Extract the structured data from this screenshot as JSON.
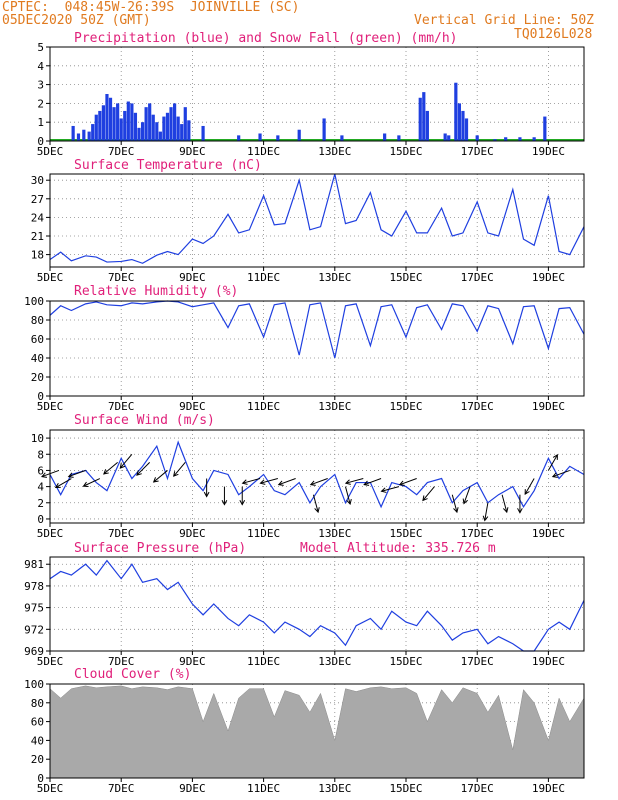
{
  "header": {
    "line1": "CPTEC:  048:45W-26:39S  JOINVILLE (SC)",
    "line2": "05DEC2020 50Z (GMT)",
    "grid_note": "Vertical Grid Line: 50Z",
    "code": "TQ0126L028"
  },
  "colors": {
    "header": "#e07a1f",
    "title": "#e0207a",
    "series": "#1f3fe0",
    "snow": "#22aa22",
    "cloud": "#a9a9a9",
    "wind_arrow": "#000000"
  },
  "x_axis": {
    "tick_labels": [
      "5DEC",
      "7DEC",
      "9DEC",
      "11DEC",
      "13DEC",
      "15DEC",
      "17DEC",
      "19DEC"
    ],
    "tick_days": [
      5,
      7,
      9,
      11,
      13,
      15,
      17,
      19
    ],
    "range_days": [
      5,
      20
    ]
  },
  "chart_data": [
    {
      "type": "bar",
      "title": "Precipitation (blue) and Snow Fall (green) (mm/h)",
      "ylim": [
        0,
        5
      ],
      "yticks": [
        "0",
        "1",
        "2",
        "3",
        "4",
        "5"
      ],
      "series": [
        {
          "color": "blue",
          "x_day": [
            5.65,
            5.8,
            5.95,
            6.1,
            6.2,
            6.3,
            6.4,
            6.5,
            6.6,
            6.7,
            6.8,
            6.9,
            7.0,
            7.1,
            7.2,
            7.3,
            7.4,
            7.5,
            7.6,
            7.7,
            7.8,
            7.9,
            8.0,
            8.1,
            8.2,
            8.3,
            8.4,
            8.5,
            8.6,
            8.7,
            8.8,
            8.9,
            9.3,
            10.3,
            10.9,
            11.4,
            12.0,
            12.7,
            13.2,
            14.4,
            14.8,
            15.4,
            15.5,
            15.6,
            16.1,
            16.2,
            16.4,
            16.5,
            16.6,
            16.7,
            17.0,
            17.5,
            17.8,
            18.2,
            18.6,
            18.9
          ],
          "values": [
            0.8,
            0.4,
            0.6,
            0.5,
            0.9,
            1.4,
            1.6,
            1.9,
            2.5,
            2.3,
            1.8,
            2.0,
            1.2,
            1.6,
            2.1,
            2.0,
            1.5,
            0.7,
            1.0,
            1.8,
            2.0,
            1.4,
            1.0,
            0.5,
            1.3,
            1.5,
            1.8,
            2.0,
            1.3,
            0.9,
            1.8,
            1.1,
            0.8,
            0.3,
            0.4,
            0.3,
            0.6,
            1.2,
            0.3,
            0.4,
            0.3,
            2.3,
            2.6,
            1.6,
            0.4,
            0.3,
            3.1,
            2.0,
            1.6,
            1.2,
            0.3,
            0.1,
            0.2,
            0.2,
            0.2,
            1.3
          ]
        },
        {
          "color": "green",
          "x_day": [
            5,
            20
          ],
          "values": [
            0,
            0
          ]
        }
      ]
    },
    {
      "type": "line",
      "title": "Surface Temperature (nC)",
      "ylim": [
        16,
        31
      ],
      "yticks": [
        "18",
        "21",
        "24",
        "27",
        "30"
      ],
      "ytick_values": [
        18,
        21,
        24,
        27,
        30
      ],
      "x_day": [
        5.0,
        5.3,
        5.6,
        6.0,
        6.3,
        6.6,
        7.0,
        7.3,
        7.6,
        8.0,
        8.3,
        8.6,
        9.0,
        9.3,
        9.6,
        10.0,
        10.3,
        10.6,
        11.0,
        11.3,
        11.6,
        12.0,
        12.3,
        12.6,
        13.0,
        13.3,
        13.6,
        14.0,
        14.3,
        14.6,
        15.0,
        15.3,
        15.6,
        16.0,
        16.3,
        16.6,
        17.0,
        17.3,
        17.6,
        18.0,
        18.3,
        18.6,
        19.0,
        19.3,
        19.6,
        20.0
      ],
      "values": [
        17.2,
        18.4,
        17.0,
        17.8,
        17.6,
        16.8,
        16.9,
        17.2,
        16.6,
        17.9,
        18.5,
        18.0,
        20.5,
        19.8,
        21.0,
        24.5,
        21.5,
        22.0,
        27.5,
        22.8,
        23.0,
        30.0,
        22.0,
        22.5,
        31.0,
        23.0,
        23.5,
        28.0,
        22.0,
        21.0,
        25.0,
        21.5,
        21.5,
        25.5,
        21.0,
        21.5,
        26.5,
        21.5,
        21.0,
        28.5,
        20.5,
        19.5,
        27.5,
        18.5,
        18.0,
        22.5
      ]
    },
    {
      "type": "line",
      "title": "Relative Humidity (%)",
      "ylim": [
        0,
        100
      ],
      "yticks": [
        "0",
        "20",
        "40",
        "60",
        "80",
        "100"
      ],
      "ytick_values": [
        0,
        20,
        40,
        60,
        80,
        100
      ],
      "x_day": [
        5.0,
        5.3,
        5.6,
        6.0,
        6.3,
        6.6,
        7.0,
        7.3,
        7.6,
        8.0,
        8.3,
        8.6,
        9.0,
        9.3,
        9.6,
        10.0,
        10.3,
        10.6,
        11.0,
        11.3,
        11.6,
        12.0,
        12.3,
        12.6,
        13.0,
        13.3,
        13.6,
        14.0,
        14.3,
        14.6,
        15.0,
        15.3,
        15.6,
        16.0,
        16.3,
        16.6,
        17.0,
        17.3,
        17.6,
        18.0,
        18.3,
        18.6,
        19.0,
        19.3,
        19.6,
        20.0
      ],
      "values": [
        85,
        95,
        90,
        97,
        99,
        96,
        95,
        98,
        97,
        99,
        100,
        99,
        94,
        96,
        98,
        72,
        95,
        97,
        62,
        96,
        98,
        43,
        96,
        98,
        40,
        95,
        97,
        53,
        94,
        96,
        62,
        93,
        96,
        70,
        97,
        95,
        68,
        95,
        92,
        55,
        94,
        95,
        50,
        92,
        93,
        65
      ]
    },
    {
      "type": "line",
      "title": "Surface Wind (m/s)",
      "ylim": [
        -0.5,
        11
      ],
      "yticks": [
        "0",
        "2",
        "4",
        "6",
        "8",
        "10"
      ],
      "ytick_values": [
        0,
        2,
        4,
        6,
        8,
        10
      ],
      "x_day": [
        5.0,
        5.3,
        5.6,
        6.0,
        6.3,
        6.6,
        7.0,
        7.3,
        7.6,
        8.0,
        8.3,
        8.6,
        9.0,
        9.3,
        9.6,
        10.0,
        10.3,
        10.6,
        11.0,
        11.3,
        11.6,
        12.0,
        12.3,
        12.6,
        13.0,
        13.3,
        13.6,
        14.0,
        14.3,
        14.6,
        15.0,
        15.3,
        15.6,
        16.0,
        16.3,
        16.6,
        17.0,
        17.3,
        17.6,
        18.0,
        18.3,
        18.6,
        19.0,
        19.3,
        19.6,
        20.0
      ],
      "values": [
        5.5,
        3.0,
        5.5,
        6.0,
        4.5,
        3.5,
        7.5,
        5.0,
        6.5,
        9.0,
        5.0,
        9.5,
        5.0,
        3.5,
        6.0,
        5.5,
        3.0,
        4.0,
        5.5,
        3.5,
        3.0,
        4.5,
        2.0,
        4.0,
        5.5,
        2.0,
        4.5,
        4.5,
        1.5,
        4.5,
        4.0,
        3.0,
        4.5,
        5.0,
        2.0,
        3.5,
        4.5,
        2.0,
        3.0,
        4.0,
        1.5,
        3.5,
        7.5,
        5.0,
        6.5,
        5.5
      ]
    },
    {
      "type": "line",
      "title": "Surface Pressure (hPa)",
      "annotation": "Model Altitude: 335.726 m",
      "ylim": [
        969,
        982
      ],
      "yticks": [
        "969",
        "972",
        "975",
        "978",
        "981"
      ],
      "ytick_values": [
        969,
        972,
        975,
        978,
        981
      ],
      "x_day": [
        5.0,
        5.3,
        5.6,
        6.0,
        6.3,
        6.6,
        7.0,
        7.3,
        7.6,
        8.0,
        8.3,
        8.6,
        9.0,
        9.3,
        9.6,
        10.0,
        10.3,
        10.6,
        11.0,
        11.3,
        11.6,
        12.0,
        12.3,
        12.6,
        13.0,
        13.3,
        13.6,
        14.0,
        14.3,
        14.6,
        15.0,
        15.3,
        15.6,
        16.0,
        16.3,
        16.6,
        17.0,
        17.3,
        17.6,
        18.0,
        18.3,
        18.6,
        19.0,
        19.3,
        19.6,
        20.0
      ],
      "values": [
        979.0,
        980.0,
        979.5,
        981.0,
        979.5,
        981.5,
        979.0,
        981.0,
        978.5,
        979.0,
        977.5,
        978.5,
        975.5,
        974.0,
        975.5,
        973.5,
        972.5,
        974.0,
        973.0,
        971.5,
        973.0,
        972.0,
        971.0,
        972.5,
        971.5,
        969.8,
        972.5,
        973.5,
        972.0,
        974.5,
        973.0,
        972.5,
        974.5,
        972.5,
        970.5,
        971.5,
        972.0,
        970.0,
        971.0,
        970.0,
        969.0,
        968.5,
        972.0,
        973.0,
        972.0,
        976.0
      ]
    },
    {
      "type": "area",
      "title": "Cloud Cover (%)",
      "ylim": [
        0,
        100
      ],
      "yticks": [
        "0",
        "20",
        "40",
        "60",
        "80",
        "100"
      ],
      "ytick_values": [
        0,
        20,
        40,
        60,
        80,
        100
      ],
      "x_day": [
        5.0,
        5.3,
        5.6,
        6.0,
        6.3,
        6.6,
        7.0,
        7.3,
        7.6,
        8.0,
        8.3,
        8.6,
        9.0,
        9.3,
        9.6,
        10.0,
        10.3,
        10.6,
        11.0,
        11.3,
        11.6,
        12.0,
        12.3,
        12.6,
        13.0,
        13.3,
        13.6,
        14.0,
        14.3,
        14.6,
        15.0,
        15.3,
        15.6,
        16.0,
        16.3,
        16.6,
        17.0,
        17.3,
        17.6,
        18.0,
        18.3,
        18.6,
        19.0,
        19.3,
        19.6,
        20.0
      ],
      "values": [
        95,
        85,
        95,
        98,
        96,
        97,
        98,
        95,
        97,
        96,
        94,
        97,
        95,
        60,
        90,
        50,
        85,
        95,
        95,
        65,
        93,
        88,
        70,
        90,
        40,
        95,
        92,
        96,
        97,
        95,
        96,
        90,
        60,
        94,
        80,
        96,
        90,
        70,
        88,
        30,
        94,
        80,
        40,
        85,
        60,
        85
      ]
    }
  ],
  "wind_arrows": [
    {
      "day": 5.25,
      "speed": 6,
      "dir_deg": 200
    },
    {
      "day": 5.6,
      "speed": 5,
      "dir_deg": 210
    },
    {
      "day": 6.0,
      "speed": 6,
      "dir_deg": 200
    },
    {
      "day": 6.4,
      "speed": 5,
      "dir_deg": 205
    },
    {
      "day": 6.9,
      "speed": 7,
      "dir_deg": 220
    },
    {
      "day": 7.3,
      "speed": 8,
      "dir_deg": 230
    },
    {
      "day": 7.8,
      "speed": 7,
      "dir_deg": 225
    },
    {
      "day": 8.3,
      "speed": 6,
      "dir_deg": 220
    },
    {
      "day": 8.8,
      "speed": 7,
      "dir_deg": 230
    },
    {
      "day": 9.4,
      "speed": 5,
      "dir_deg": 270
    },
    {
      "day": 9.9,
      "speed": 4,
      "dir_deg": 270
    },
    {
      "day": 10.4,
      "speed": 4,
      "dir_deg": 270
    },
    {
      "day": 10.9,
      "speed": 5,
      "dir_deg": 195
    },
    {
      "day": 11.4,
      "speed": 5,
      "dir_deg": 195
    },
    {
      "day": 11.9,
      "speed": 5,
      "dir_deg": 200
    },
    {
      "day": 12.4,
      "speed": 3,
      "dir_deg": 285
    },
    {
      "day": 12.8,
      "speed": 5,
      "dir_deg": 200
    },
    {
      "day": 13.3,
      "speed": 4,
      "dir_deg": 285
    },
    {
      "day": 13.8,
      "speed": 5,
      "dir_deg": 195
    },
    {
      "day": 14.3,
      "speed": 5,
      "dir_deg": 200
    },
    {
      "day": 14.8,
      "speed": 4,
      "dir_deg": 195
    },
    {
      "day": 15.3,
      "speed": 5,
      "dir_deg": 200
    },
    {
      "day": 15.8,
      "speed": 4,
      "dir_deg": 230
    },
    {
      "day": 16.3,
      "speed": 3,
      "dir_deg": 285
    },
    {
      "day": 16.8,
      "speed": 4,
      "dir_deg": 250
    },
    {
      "day": 17.3,
      "speed": 2,
      "dir_deg": 260
    },
    {
      "day": 17.7,
      "speed": 3,
      "dir_deg": 285
    },
    {
      "day": 18.2,
      "speed": 3,
      "dir_deg": 270
    },
    {
      "day": 18.6,
      "speed": 5,
      "dir_deg": 240
    },
    {
      "day": 19.0,
      "speed": 6,
      "dir_deg": 60
    },
    {
      "day": 19.6,
      "speed": 6,
      "dir_deg": 200
    }
  ]
}
